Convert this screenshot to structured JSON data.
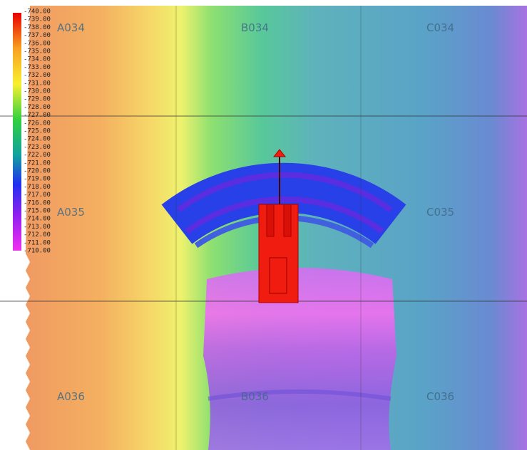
{
  "legend": {
    "labels": [
      "-740.00",
      "-739.00",
      "-738.00",
      "-737.00",
      "-736.00",
      "-735.00",
      "-734.00",
      "-733.00",
      "-732.00",
      "-731.00",
      "-730.00",
      "-729.00",
      "-728.00",
      "-727.00",
      "-726.00",
      "-725.00",
      "-724.00",
      "-723.00",
      "-722.00",
      "-721.00",
      "-720.00",
      "-719.00",
      "-718.00",
      "-717.00",
      "-716.00",
      "-715.00",
      "-714.00",
      "-713.00",
      "-712.00",
      "-711.00",
      "-710.00"
    ]
  },
  "grid_labels": [
    "A034",
    "B034",
    "C034",
    "A035",
    "C035",
    "A036",
    "B036",
    "C036"
  ]
}
